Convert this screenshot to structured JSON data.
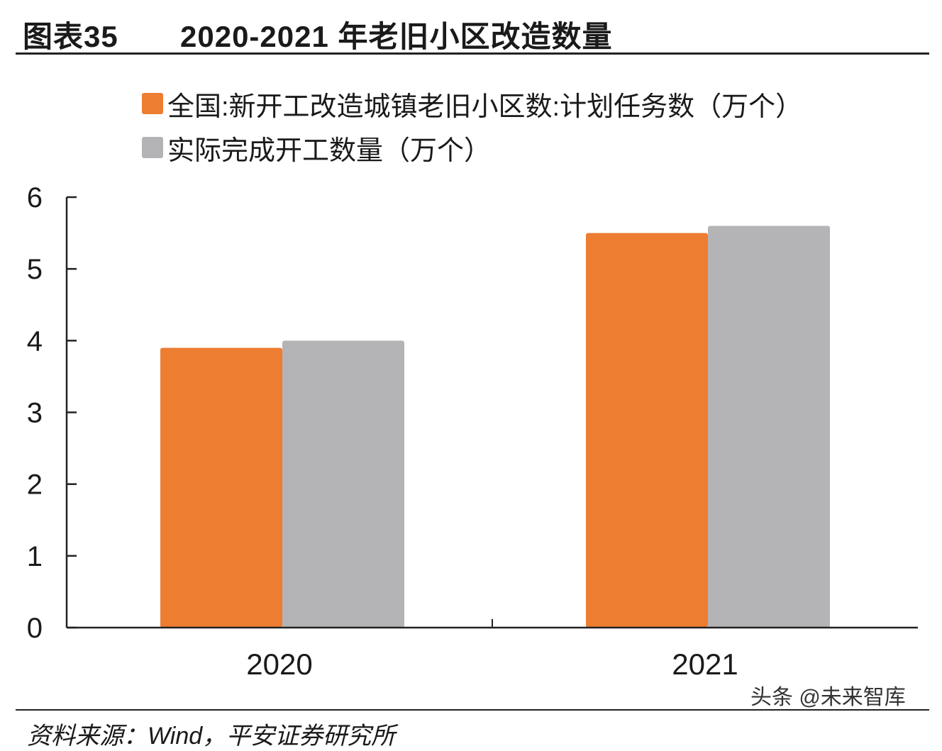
{
  "header": {
    "label": "图表35",
    "title": "2020-2021 年老旧小区改造数量"
  },
  "legend": {
    "items": [
      {
        "label": "全国:新开工改造城镇老旧小区数:计划任务数（万个）",
        "color": "#ED7D31"
      },
      {
        "label": "实际完成开工数量（万个）",
        "color": "#B4B4B6"
      }
    ]
  },
  "chart_data": {
    "type": "bar",
    "categories": [
      "2020",
      "2021"
    ],
    "series": [
      {
        "name": "全国:新开工改造城镇老旧小区数:计划任务数（万个）",
        "values": [
          3.9,
          5.5
        ],
        "color": "#ED7D31"
      },
      {
        "name": "实际完成开工数量（万个）",
        "values": [
          4.0,
          5.6
        ],
        "color": "#B4B4B6"
      }
    ],
    "y_ticks": [
      "0",
      "1",
      "2",
      "3",
      "4",
      "5",
      "6"
    ],
    "ylim": [
      0,
      6
    ],
    "grid": false,
    "legend_position": "top-left"
  },
  "footer": {
    "source": "资料来源：Wind，平安证券研究所",
    "watermark": "头条 @未来智库"
  }
}
